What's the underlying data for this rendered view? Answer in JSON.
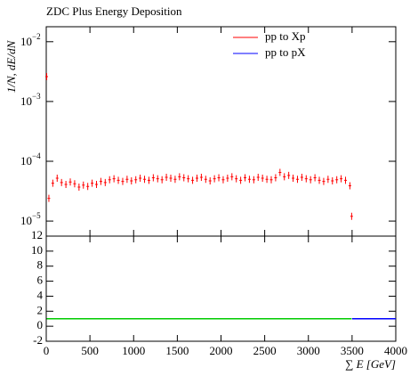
{
  "chart_data": [
    {
      "type": "scatter",
      "title": "ZDC Plus Energy Deposition",
      "ylabel": "1/N, dE/dN",
      "log_y": true,
      "xlim": [
        0,
        4000
      ],
      "xticks": [
        0,
        500,
        1000,
        1500,
        2000,
        2500,
        3000,
        3500,
        4000
      ],
      "ylim": [
        5.6e-06,
        0.0178
      ],
      "yticks": [
        {
          "value": 0.01,
          "label": "10",
          "exponent": "−2"
        },
        {
          "value": 0.001,
          "label": "10",
          "exponent": "−3"
        },
        {
          "value": 0.0001,
          "label": "10",
          "exponent": "−4"
        },
        {
          "value": 1e-05,
          "label": "10",
          "exponent": "−5"
        }
      ],
      "legend": "top-right",
      "series": [
        {
          "name": "pp to Xp",
          "color": "#ff0000",
          "x": [
            5,
            30,
            75,
            125,
            175,
            225,
            275,
            325,
            375,
            425,
            475,
            525,
            575,
            625,
            675,
            725,
            775,
            825,
            875,
            925,
            975,
            1025,
            1075,
            1125,
            1175,
            1225,
            1275,
            1325,
            1375,
            1425,
            1475,
            1525,
            1575,
            1625,
            1675,
            1725,
            1775,
            1825,
            1875,
            1925,
            1975,
            2025,
            2075,
            2125,
            2175,
            2225,
            2275,
            2325,
            2375,
            2425,
            2475,
            2525,
            2575,
            2625,
            2675,
            2725,
            2775,
            2825,
            2875,
            2925,
            2975,
            3025,
            3075,
            3125,
            3175,
            3225,
            3275,
            3325,
            3375,
            3425,
            3475,
            3495
          ],
          "values": [
            0.0026,
            2.4e-05,
            4.3e-05,
            5.2e-05,
            4.4e-05,
            4.1e-05,
            4.5e-05,
            4.2e-05,
            3.7e-05,
            4e-05,
            3.8e-05,
            4.3e-05,
            4.1e-05,
            4.6e-05,
            4.4e-05,
            4.9e-05,
            5.1e-05,
            4.8e-05,
            4.6e-05,
            5e-05,
            4.7e-05,
            4.9e-05,
            5.2e-05,
            5e-05,
            4.8e-05,
            5.3e-05,
            5.1e-05,
            4.9e-05,
            5.4e-05,
            5.2e-05,
            5e-05,
            5.5e-05,
            5.3e-05,
            5.1e-05,
            4.8e-05,
            5.2e-05,
            5.4e-05,
            5e-05,
            4.7e-05,
            5.1e-05,
            5.3e-05,
            4.9e-05,
            5.2e-05,
            5.5e-05,
            5.1e-05,
            4.8e-05,
            5.3e-05,
            5e-05,
            4.9e-05,
            5.4e-05,
            5.2e-05,
            5e-05,
            4.9e-05,
            5.3e-05,
            6.5e-05,
            5.5e-05,
            5.8e-05,
            5.2e-05,
            5e-05,
            5.4e-05,
            5.1e-05,
            4.9e-05,
            5.3e-05,
            4.8e-05,
            4.6e-05,
            5e-05,
            4.7e-05,
            4.9e-05,
            5.1e-05,
            4.8e-05,
            3.9e-05,
            1.2e-05
          ]
        },
        {
          "name": "pp to pX",
          "color": "#0000ff",
          "x": [],
          "values": []
        }
      ]
    },
    {
      "type": "ratio",
      "xlabel": "∑ E [GeV]",
      "xlim": [
        0,
        4000
      ],
      "xticks": [
        0,
        500,
        1000,
        1500,
        2000,
        2500,
        3000,
        3500,
        4000
      ],
      "ylim": [
        -2,
        12
      ],
      "yticks": [
        -2,
        0,
        2,
        4,
        6,
        8,
        10,
        12
      ],
      "series": [
        {
          "color": "#00cc00",
          "x": [
            5,
            30,
            75,
            125,
            175,
            225,
            275,
            325,
            375,
            425,
            475,
            525,
            575,
            625,
            675,
            725,
            775,
            825,
            875,
            925,
            975,
            1025,
            1075,
            1125,
            1175,
            1225,
            1275,
            1325,
            1375,
            1425,
            1475,
            1525,
            1575,
            1625,
            1675,
            1725,
            1775,
            1825,
            1875,
            1925,
            1975,
            2025,
            2075,
            2125,
            2175,
            2225,
            2275,
            2325,
            2375,
            2425,
            2475,
            2525,
            2575,
            2625,
            2675,
            2725,
            2775,
            2825,
            2875,
            2925,
            2975,
            3025,
            3075,
            3125,
            3175,
            3225,
            3275,
            3325,
            3375,
            3425,
            3475,
            3495
          ],
          "values": [
            1,
            1,
            1,
            1,
            1,
            1,
            1,
            1,
            1,
            1,
            1,
            1,
            1,
            1,
            1,
            1,
            1,
            1,
            1,
            1,
            1,
            1,
            1,
            1,
            1,
            1,
            1,
            1,
            1,
            1,
            1,
            1,
            1,
            1,
            1,
            1,
            1,
            1,
            1,
            1,
            1,
            1,
            1,
            1,
            1,
            1,
            1,
            1,
            1,
            1,
            1,
            1,
            1,
            1,
            1,
            1,
            1,
            1,
            1,
            1,
            1,
            1,
            1,
            1,
            1,
            1,
            1,
            1,
            1,
            1,
            1,
            1
          ]
        },
        {
          "color": "#0000ff",
          "x": [
            3500,
            4000
          ],
          "values": [
            1,
            1
          ]
        }
      ]
    }
  ]
}
